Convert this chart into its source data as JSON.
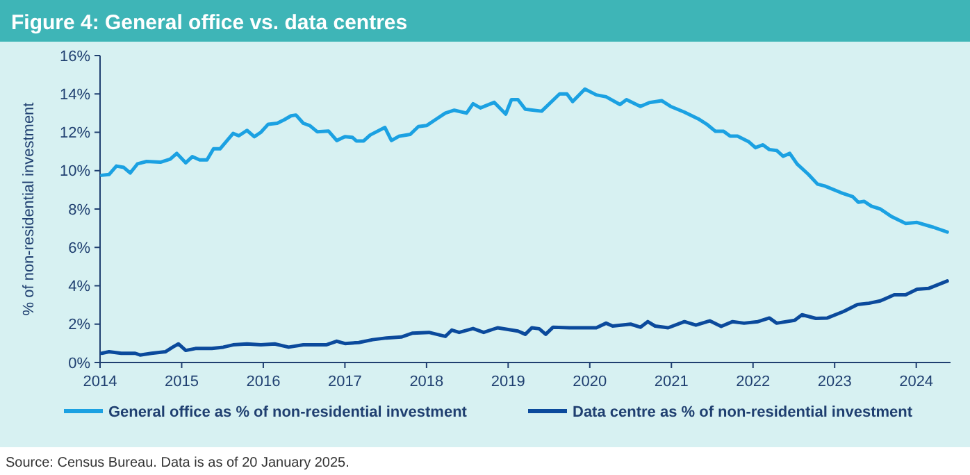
{
  "chart_data": {
    "type": "line",
    "title": "Figure 4: General office vs. data centres",
    "ylabel": "% of non-residential investment",
    "xlim": [
      2014,
      2024.42
    ],
    "xticks": [
      2014,
      2015,
      2016,
      2017,
      2018,
      2019,
      2020,
      2021,
      2022,
      2023,
      2024
    ],
    "ylim": [
      0,
      16
    ],
    "yticks": [
      {
        "value": 0,
        "label": "0%"
      },
      {
        "value": 2,
        "label": "2%"
      },
      {
        "value": 4,
        "label": "4%"
      },
      {
        "value": 6,
        "label": "6%"
      },
      {
        "value": 8,
        "label": "8%"
      },
      {
        "value": 10,
        "label": "10%"
      },
      {
        "value": 12,
        "label": "12%"
      },
      {
        "value": 14,
        "label": "14%"
      },
      {
        "value": 16,
        "label": "16%"
      }
    ],
    "grid": false,
    "legend": "bottom",
    "marker": "none",
    "line_style": "solid",
    "series": [
      {
        "name": "General office as % of non-residential investment",
        "color": "#1ba1e2",
        "x": [
          2014.02,
          2014.11,
          2014.2,
          2014.29,
          2014.37,
          2014.46,
          2014.57,
          2014.74,
          2014.86,
          2014.94,
          2015.05,
          2015.13,
          2015.22,
          2015.31,
          2015.39,
          2015.47,
          2015.63,
          2015.7,
          2015.8,
          2015.89,
          2015.97,
          2016.06,
          2016.17,
          2016.26,
          2016.34,
          2016.4,
          2016.49,
          2016.57,
          2016.66,
          2016.8,
          2016.9,
          2017.0,
          2017.09,
          2017.14,
          2017.23,
          2017.31,
          2017.49,
          2017.57,
          2017.66,
          2017.8,
          2017.9,
          2018.0,
          2018.11,
          2018.23,
          2018.34,
          2018.49,
          2018.57,
          2018.66,
          2018.83,
          2018.97,
          2019.04,
          2019.12,
          2019.21,
          2019.41,
          2019.63,
          2019.72,
          2019.79,
          2019.94,
          2020.08,
          2020.2,
          2020.37,
          2020.45,
          2020.62,
          2020.73,
          2020.88,
          2020.99,
          2021.16,
          2021.33,
          2021.44,
          2021.54,
          2021.64,
          2021.72,
          2021.81,
          2021.95,
          2022.03,
          2022.12,
          2022.2,
          2022.29,
          2022.37,
          2022.45,
          2022.54,
          2022.68,
          2022.79,
          2022.88,
          2023.08,
          2023.22,
          2023.29,
          2023.36,
          2023.45,
          2023.56,
          2023.7,
          2023.87,
          2024.01,
          2024.21,
          2024.38
        ],
        "values": [
          9.76,
          9.8,
          10.24,
          10.17,
          9.88,
          10.36,
          10.48,
          10.44,
          10.6,
          10.9,
          10.41,
          10.73,
          10.56,
          10.56,
          11.14,
          11.14,
          11.94,
          11.82,
          12.1,
          11.77,
          12.0,
          12.42,
          12.47,
          12.66,
          12.86,
          12.9,
          12.47,
          12.35,
          12.03,
          12.06,
          11.57,
          11.77,
          11.74,
          11.55,
          11.55,
          11.86,
          12.25,
          11.57,
          11.79,
          11.89,
          12.3,
          12.35,
          12.66,
          13.0,
          13.15,
          13.0,
          13.49,
          13.27,
          13.56,
          12.95,
          13.7,
          13.7,
          13.2,
          13.1,
          14.0,
          14.0,
          13.6,
          14.25,
          13.95,
          13.85,
          13.45,
          13.7,
          13.35,
          13.55,
          13.65,
          13.35,
          13.05,
          12.7,
          12.4,
          12.05,
          12.05,
          11.8,
          11.8,
          11.5,
          11.2,
          11.35,
          11.1,
          11.05,
          10.75,
          10.9,
          10.35,
          9.8,
          9.3,
          9.2,
          8.85,
          8.65,
          8.35,
          8.4,
          8.15,
          8.0,
          7.6,
          7.25,
          7.3,
          7.05,
          6.8
        ]
      },
      {
        "name": "Data centre as % of non-residential investment",
        "color": "#0b4a9c",
        "x": [
          2014.02,
          2014.11,
          2014.26,
          2014.43,
          2014.49,
          2014.63,
          2014.8,
          2014.89,
          2014.96,
          2015.05,
          2015.17,
          2015.37,
          2015.51,
          2015.63,
          2015.8,
          2015.97,
          2016.14,
          2016.31,
          2016.49,
          2016.77,
          2016.9,
          2017.0,
          2017.17,
          2017.34,
          2017.51,
          2017.69,
          2017.83,
          2018.03,
          2018.23,
          2018.31,
          2018.4,
          2018.57,
          2018.7,
          2018.87,
          2019.12,
          2019.21,
          2019.29,
          2019.38,
          2019.46,
          2019.55,
          2019.75,
          2020.08,
          2020.2,
          2020.28,
          2020.5,
          2020.62,
          2020.71,
          2020.8,
          2020.96,
          2021.16,
          2021.3,
          2021.47,
          2021.61,
          2021.75,
          2021.89,
          2022.06,
          2022.2,
          2022.29,
          2022.51,
          2022.6,
          2022.77,
          2022.91,
          2023.11,
          2023.28,
          2023.42,
          2023.56,
          2023.73,
          2023.87,
          2024.01,
          2024.15,
          2024.38
        ],
        "values": [
          0.48,
          0.56,
          0.48,
          0.48,
          0.39,
          0.48,
          0.56,
          0.8,
          0.97,
          0.63,
          0.73,
          0.73,
          0.8,
          0.92,
          0.97,
          0.92,
          0.97,
          0.8,
          0.92,
          0.92,
          1.11,
          0.99,
          1.04,
          1.19,
          1.28,
          1.33,
          1.53,
          1.57,
          1.36,
          1.69,
          1.57,
          1.77,
          1.57,
          1.81,
          1.64,
          1.47,
          1.81,
          1.76,
          1.47,
          1.84,
          1.81,
          1.81,
          2.05,
          1.9,
          2.0,
          1.84,
          2.13,
          1.9,
          1.81,
          2.13,
          1.95,
          2.17,
          1.88,
          2.13,
          2.05,
          2.13,
          2.32,
          2.05,
          2.2,
          2.49,
          2.3,
          2.32,
          2.66,
          3.02,
          3.09,
          3.21,
          3.53,
          3.53,
          3.82,
          3.86,
          4.25
        ]
      }
    ],
    "annotations": [
      "Source: Census Bureau. Data is as of 20 January 2025."
    ]
  }
}
